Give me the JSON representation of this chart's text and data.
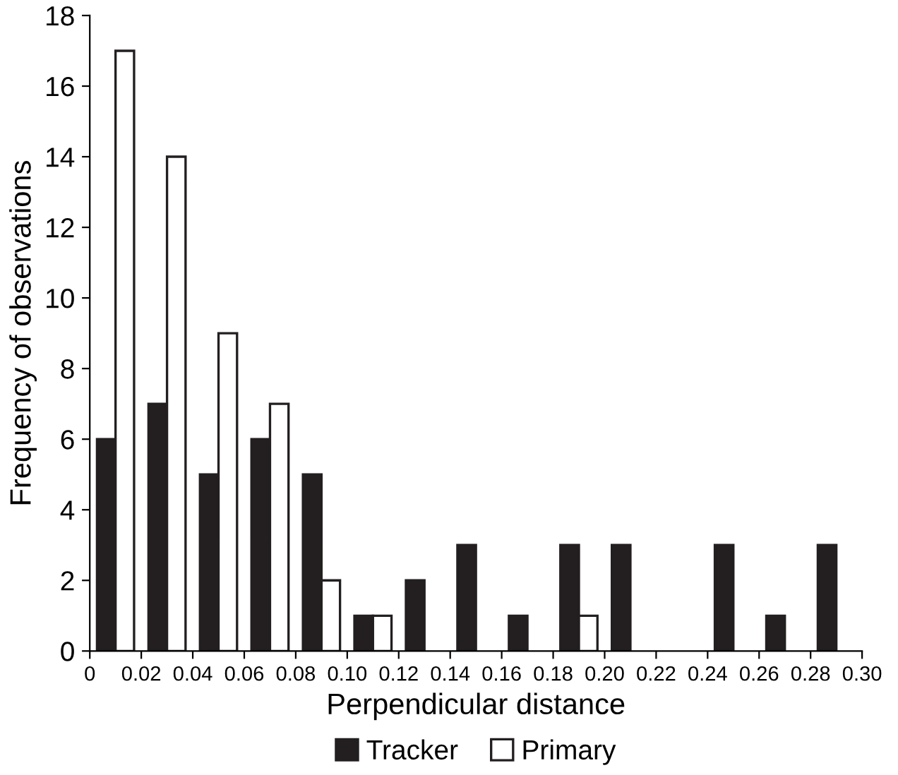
{
  "chart_data": {
    "type": "bar",
    "xlabel": "Perpendicular distance",
    "ylabel": "Frequency of observations",
    "x": [
      0.01,
      0.03,
      0.05,
      0.07,
      0.09,
      0.11,
      0.13,
      0.15,
      0.17,
      0.19,
      0.21,
      0.23,
      0.25,
      0.27,
      0.29
    ],
    "series": [
      {
        "name": "Tracker",
        "color": "#231f20",
        "values": [
          6,
          7,
          5,
          6,
          5,
          1,
          2,
          3,
          1,
          3,
          3,
          0,
          3,
          1,
          3
        ]
      },
      {
        "name": "Primary",
        "color": "#ffffff",
        "values": [
          17,
          14,
          9,
          7,
          2,
          1,
          0,
          0,
          0,
          1,
          0,
          0,
          0,
          0,
          0
        ]
      }
    ],
    "xlim": [
      0,
      0.3
    ],
    "xticks": [
      0,
      0.02,
      0.04,
      0.06,
      0.08,
      {
        "value": 0.1,
        "label": "0.10"
      },
      0.12,
      0.14,
      0.16,
      0.18,
      {
        "value": 0.2,
        "label": "0.20"
      },
      0.22,
      0.24,
      0.26,
      0.28,
      {
        "value": 0.3,
        "label": "0.30"
      }
    ],
    "ylim": [
      0,
      18
    ],
    "yticks": [
      0,
      2,
      4,
      6,
      8,
      10,
      12,
      14,
      16,
      18
    ],
    "grid": false,
    "legend": "bottom"
  }
}
